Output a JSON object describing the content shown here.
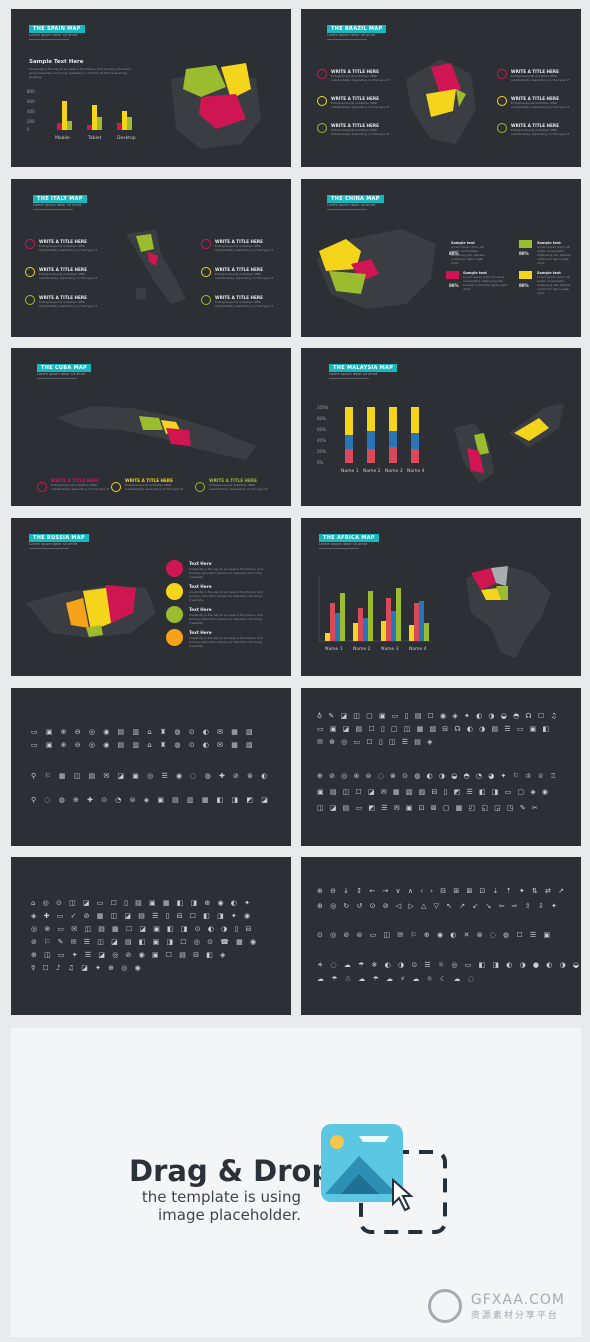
{
  "slides": {
    "spain": {
      "tag": "THE SPAIN MAP",
      "sub": "Lorem ipsum dolor sit amet",
      "heading": "Sample Text Here",
      "body": "Creativity is the key to success in the future, and primary education where teachers can bring creativity in children at that level bring growing.",
      "y_ticks": [
        "800",
        "600",
        "400",
        "200",
        "0"
      ],
      "categories": [
        "Mobile",
        "Tablet",
        "Desktop"
      ]
    },
    "brazil": {
      "tag": "THE BRAZIL MAP",
      "sub": "Lorem ipsum dolor sit amet",
      "item_title": "WRITE A TITLE HERE",
      "item_body": "Entrepreneurial activities differ substantially depending on the type of"
    },
    "italy": {
      "tag": "THE ITALY MAP",
      "sub": "Lorem ipsum dolor sit amet",
      "item_title": "WRITE A TITLE HERE",
      "item_body": "Entrepreneurial activities differ substantially depending on the type of"
    },
    "china": {
      "tag": "THE CHINA MAP",
      "sub": "Lorem ipsum dolor sit amet",
      "label": "Sample text",
      "pct": "80%",
      "body": "Lorem ipsum dolor sit amet, consectetur adipiscing elit. Aenean commodo ligula eget dolor."
    },
    "cuba": {
      "tag": "THE CUBA MAP",
      "sub": "Lorem ipsum dolor sit amet",
      "item_title": "WRITE A TITLE HERE",
      "item_body": "Entrepreneurial activities differ substantially depending on the type of"
    },
    "malaysia": {
      "tag": "THE MALAYSIA MAP",
      "sub": "Lorem ipsum dolor sit amet",
      "y_ticks": [
        "100%",
        "80%",
        "60%",
        "40%",
        "20%",
        "0%"
      ],
      "categories": [
        "Name 1",
        "Name 2",
        "Name 3",
        "Name 4"
      ]
    },
    "russia": {
      "tag": "THE RUSSIA MAP",
      "sub": "Lorem ipsum dolor sit amet",
      "item_title": "Text Here",
      "item_body": "Creativity is the key to success in the future, and primary education where our teachers can bring creativity."
    },
    "africa": {
      "tag": "THE AFRICA MAP",
      "sub": "Lorem ipsum dolor sit amet",
      "categories": [
        "Name 1",
        "Name 2",
        "Name 3",
        "Name 4"
      ]
    }
  },
  "icon_rows": {
    "a": [
      "▭ ▣ ⊕ ⊖ ◎ ◉ ▤ ▥ ⌂ ♜ ◍ ⊙ ◐ ✉ ▦ ▧",
      "▭ ▣ ⊕ ⊖ ◎ ◉ ▤ ▥ ⌂ ♜ ◍ ⊙ ◐ ✉ ▦ ▧",
      "⚲ ⚐ ▦ ◫ ▤ ✉ ◪ ▣ ◎ ☰ ◉ ◌ ◍ ✚ ⊘ ⊛ ◐",
      "⚲ ◌ ◍ ⊕ ✚ ⊙ ◔ ⊜ ◈ ▣ ▤ ▥ ▦ ◧ ◨ ◩ ◪"
    ],
    "b": [
      "♁ ✎ ◪ ◫ ▢ ▣ ▭ ▯ ▤ ☐ ◉ ◈ ✦ ◐ ◑ ◒ ◓ ☊ ☐ ♫",
      "▭ ▣ ◪ ▤ ☐ ▯ ▢ ◫ ▦ ▧ ⊟ ☊ ◐ ◑ ▤ ☰ ▭ ▣ ◧",
      "✉ ⊕ ◎ ▭ ☐ ▯ ◫ ☰ ▤ ◈",
      "⊕ ⊘ ◎ ⊛ ⊜ ◌ ⊗ ⊙ ◍ ◐ ◑ ◒ ◓ ◔ ◕ ✦ ⚐ ♔ ♕ ♖",
      "▣ ▤ ◫ ☐ ◪ ✉ ▦ ▧ ▨ ⊟ ▯ ◩ ☰ ◧ ◨ ▭ ▢ ◈ ◉",
      "◫ ◪ ▤ ▭ ◩ ☰ ✉ ▣ ⊡ ⊠ ▢ ▦ ◰ ◱ ◲ ◳ ✎ ✂"
    ],
    "c": [
      "⌂ ◎ ⊙ ◫ ◪ ▭ ☐ ▯ ▤ ▣ ▦ ◧ ◨ ⊕ ◉ ◐ ✦",
      "◈ ✚ ▭ ✓ ⊘ ▦ ◫ ◪ ▤ ☰ ▯ ⊟ ☐ ◧ ◨ ✦ ◉",
      "◎ ⊕ ▭ ✉ ◫ ▤ ▦ ☐ ◪ ▣ ◧ ◨ ⊙ ◐ ◑ ▯ ⊟",
      "⊘ ⚐ ✎ ✉ ☰ ◫ ◪ ▤ ◧ ▣ ◨ ☐ ◎ ⊙ ☎ ▦ ◉",
      "⊕ ◫ ▭ ✦ ☰ ◪ ◎ ⊘ ◉ ▣ ☐ ▤ ⊟ ◧ ◈",
      "☿ ☐ ♪ ♫ ◪ ✦ ⊕ ◎ ◉"
    ],
    "d": [
      "⊕ ⊖ ↓ ↕ ← → ∨ ∧ ‹ › ⊟ ⊞ ⊠ ⊡ ⇣ ⇡ ✦ ⇅ ⇄ ↗",
      "⊕ ◎ ↻ ↺ ⊙ ⊘ ◁ ▷ △ ▽ ↖ ↗ ↙ ↘ ⇦ ⇨ ⇧ ⇩ ✦",
      "⊙ ◎ ⊘ ⊜ ▭ ◫ ✉ ⚐ ⊕ ◉ ◐ ✕ ⊗ ◌ ◍ ☐ ☰ ▣",
      "☀ ◌ ☁ ☂ ❄ ◐ ◑ ⊙ ☰ ☼ ◎ ▭ ◧ ◨ ◐ ◑ ● ◐ ◑ ◒",
      "☁ ☂ ☃ ☁ ☂ ☁ ⚡ ☁ ☼ ☾ ☁ ◌"
    ]
  },
  "drag_drop": {
    "title": "Drag & Drop",
    "line1": "the template is using",
    "line2": "image placeholder."
  },
  "watermark": {
    "brand": "GFXAA.COM",
    "tagline": "资源素材分享平台"
  }
}
